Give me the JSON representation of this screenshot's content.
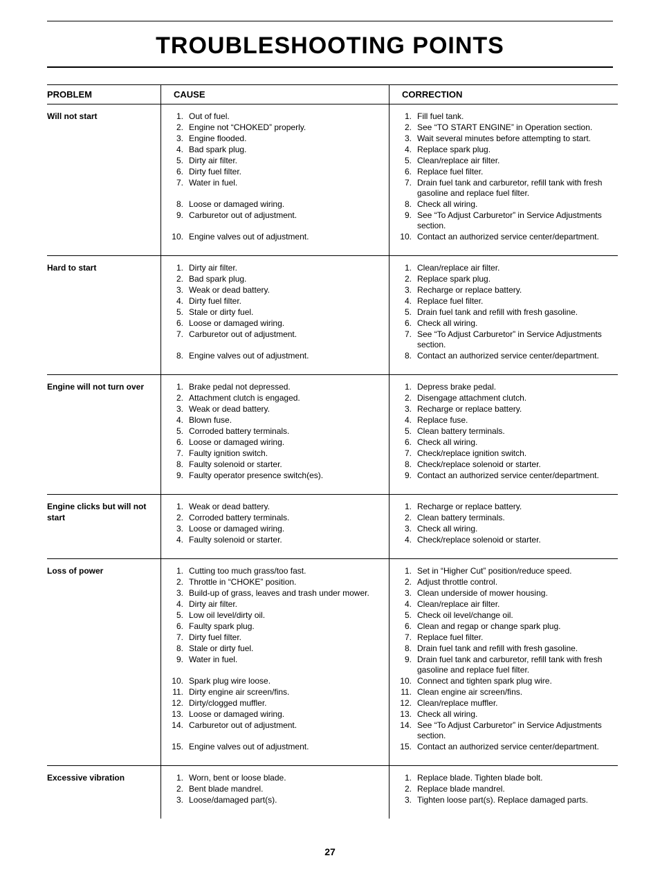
{
  "title": "TROUBLESHOOTING POINTS",
  "page_number": "27",
  "headers": {
    "problem": "PROBLEM",
    "cause": "CAUSE",
    "correction": "CORRECTION"
  },
  "rows": [
    {
      "problem": "Will not start",
      "causes": [
        "Out of fuel.",
        "Engine not “CHOKED” properly.",
        "Engine flooded.",
        "Bad spark plug.",
        "Dirty air filter.",
        "Dirty fuel filter.",
        "Water in fuel.\n ",
        "Loose or damaged wiring.",
        "Carburetor out of adjustment.\n ",
        "Engine valves out of adjustment."
      ],
      "corrections": [
        "Fill fuel tank.",
        "See “TO START ENGINE” in Operation section.",
        "Wait several minutes before attempting to start.",
        "Replace spark plug.",
        "Clean/replace air filter.",
        "Replace fuel filter.",
        "Drain fuel tank and carburetor, refill tank with fresh gasoline and replace fuel filter.",
        "Check all wiring.",
        "See “To Adjust Carburetor” in Service Adjustments section.",
        "Contact an authorized service center/department."
      ]
    },
    {
      "problem": "Hard to start",
      "causes": [
        "Dirty air filter.",
        "Bad spark plug.",
        "Weak or dead battery.",
        "Dirty fuel filter.",
        "Stale or dirty fuel.",
        "Loose or damaged wiring.",
        "Carburetor out of adjustment.\n ",
        "Engine valves out of adjustment."
      ],
      "corrections": [
        "Clean/replace air filter.",
        "Replace spark plug.",
        "Recharge or replace battery.",
        "Replace fuel filter.",
        "Drain fuel tank and refill with fresh gasoline.",
        "Check all wiring.",
        "See “To Adjust Carburetor” in Service Adjustments section.",
        "Contact an authorized service center/department."
      ]
    },
    {
      "problem": "Engine will not turn over",
      "causes": [
        "Brake pedal not depressed.",
        "Attachment clutch is engaged.",
        "Weak or dead battery.",
        "Blown fuse.",
        "Corroded battery terminals.",
        "Loose or damaged wiring.",
        "Faulty ignition switch.",
        "Faulty solenoid or starter.",
        "Faulty operator presence switch(es)."
      ],
      "corrections": [
        "Depress brake pedal.",
        "Disengage attachment clutch.",
        "Recharge or replace battery.",
        "Replace fuse.",
        "Clean battery terminals.",
        "Check all wiring.",
        "Check/replace ignition switch.",
        "Check/replace solenoid or starter.",
        "Contact an authorized service center/department."
      ]
    },
    {
      "problem": "Engine clicks but will not start",
      "causes": [
        "Weak or dead battery.",
        "Corroded battery terminals.",
        "Loose or damaged wiring.",
        "Faulty solenoid or starter."
      ],
      "corrections": [
        "Recharge or replace battery.",
        "Clean battery terminals.",
        "Check all wiring.",
        "Check/replace solenoid or starter."
      ]
    },
    {
      "problem": "Loss of power",
      "causes": [
        "Cutting too much grass/too fast.",
        "Throttle in “CHOKE” position.",
        "Build-up of grass, leaves and trash under mower.",
        "Dirty air filter.",
        "Low oil level/dirty oil.",
        "Faulty spark plug.",
        "Dirty fuel filter.",
        "Stale or dirty fuel.",
        "Water in fuel.\n ",
        "Spark plug wire loose.",
        "Dirty engine air screen/fins.",
        "Dirty/clogged muffler.",
        "Loose or damaged wiring.",
        "Carburetor out of adjustment.\n ",
        "Engine valves out of adjustment."
      ],
      "corrections": [
        "Set in “Higher Cut” position/reduce speed.",
        "Adjust throttle control.",
        "Clean underside of mower housing.",
        "Clean/replace air filter.",
        "Check oil level/change oil.",
        "Clean and regap or change spark plug.",
        "Replace fuel filter.",
        "Drain fuel tank and refill with fresh gasoline.",
        "Drain fuel tank and carburetor, refill tank with fresh gasoline and replace fuel filter.",
        "Connect and tighten spark plug wire.",
        "Clean engine air screen/fins.",
        "Clean/replace muffler.",
        "Check all wiring.",
        "See “To Adjust Carburetor” in Service Adjustments section.",
        "Contact an authorized service center/department."
      ]
    },
    {
      "problem": "Excessive vibration",
      "causes": [
        "Worn, bent or loose blade.",
        "Bent blade mandrel.",
        "Loose/damaged part(s)."
      ],
      "corrections": [
        "Replace blade.  Tighten blade bolt.",
        "Replace blade mandrel.",
        "Tighten loose part(s).  Replace damaged parts."
      ]
    }
  ]
}
